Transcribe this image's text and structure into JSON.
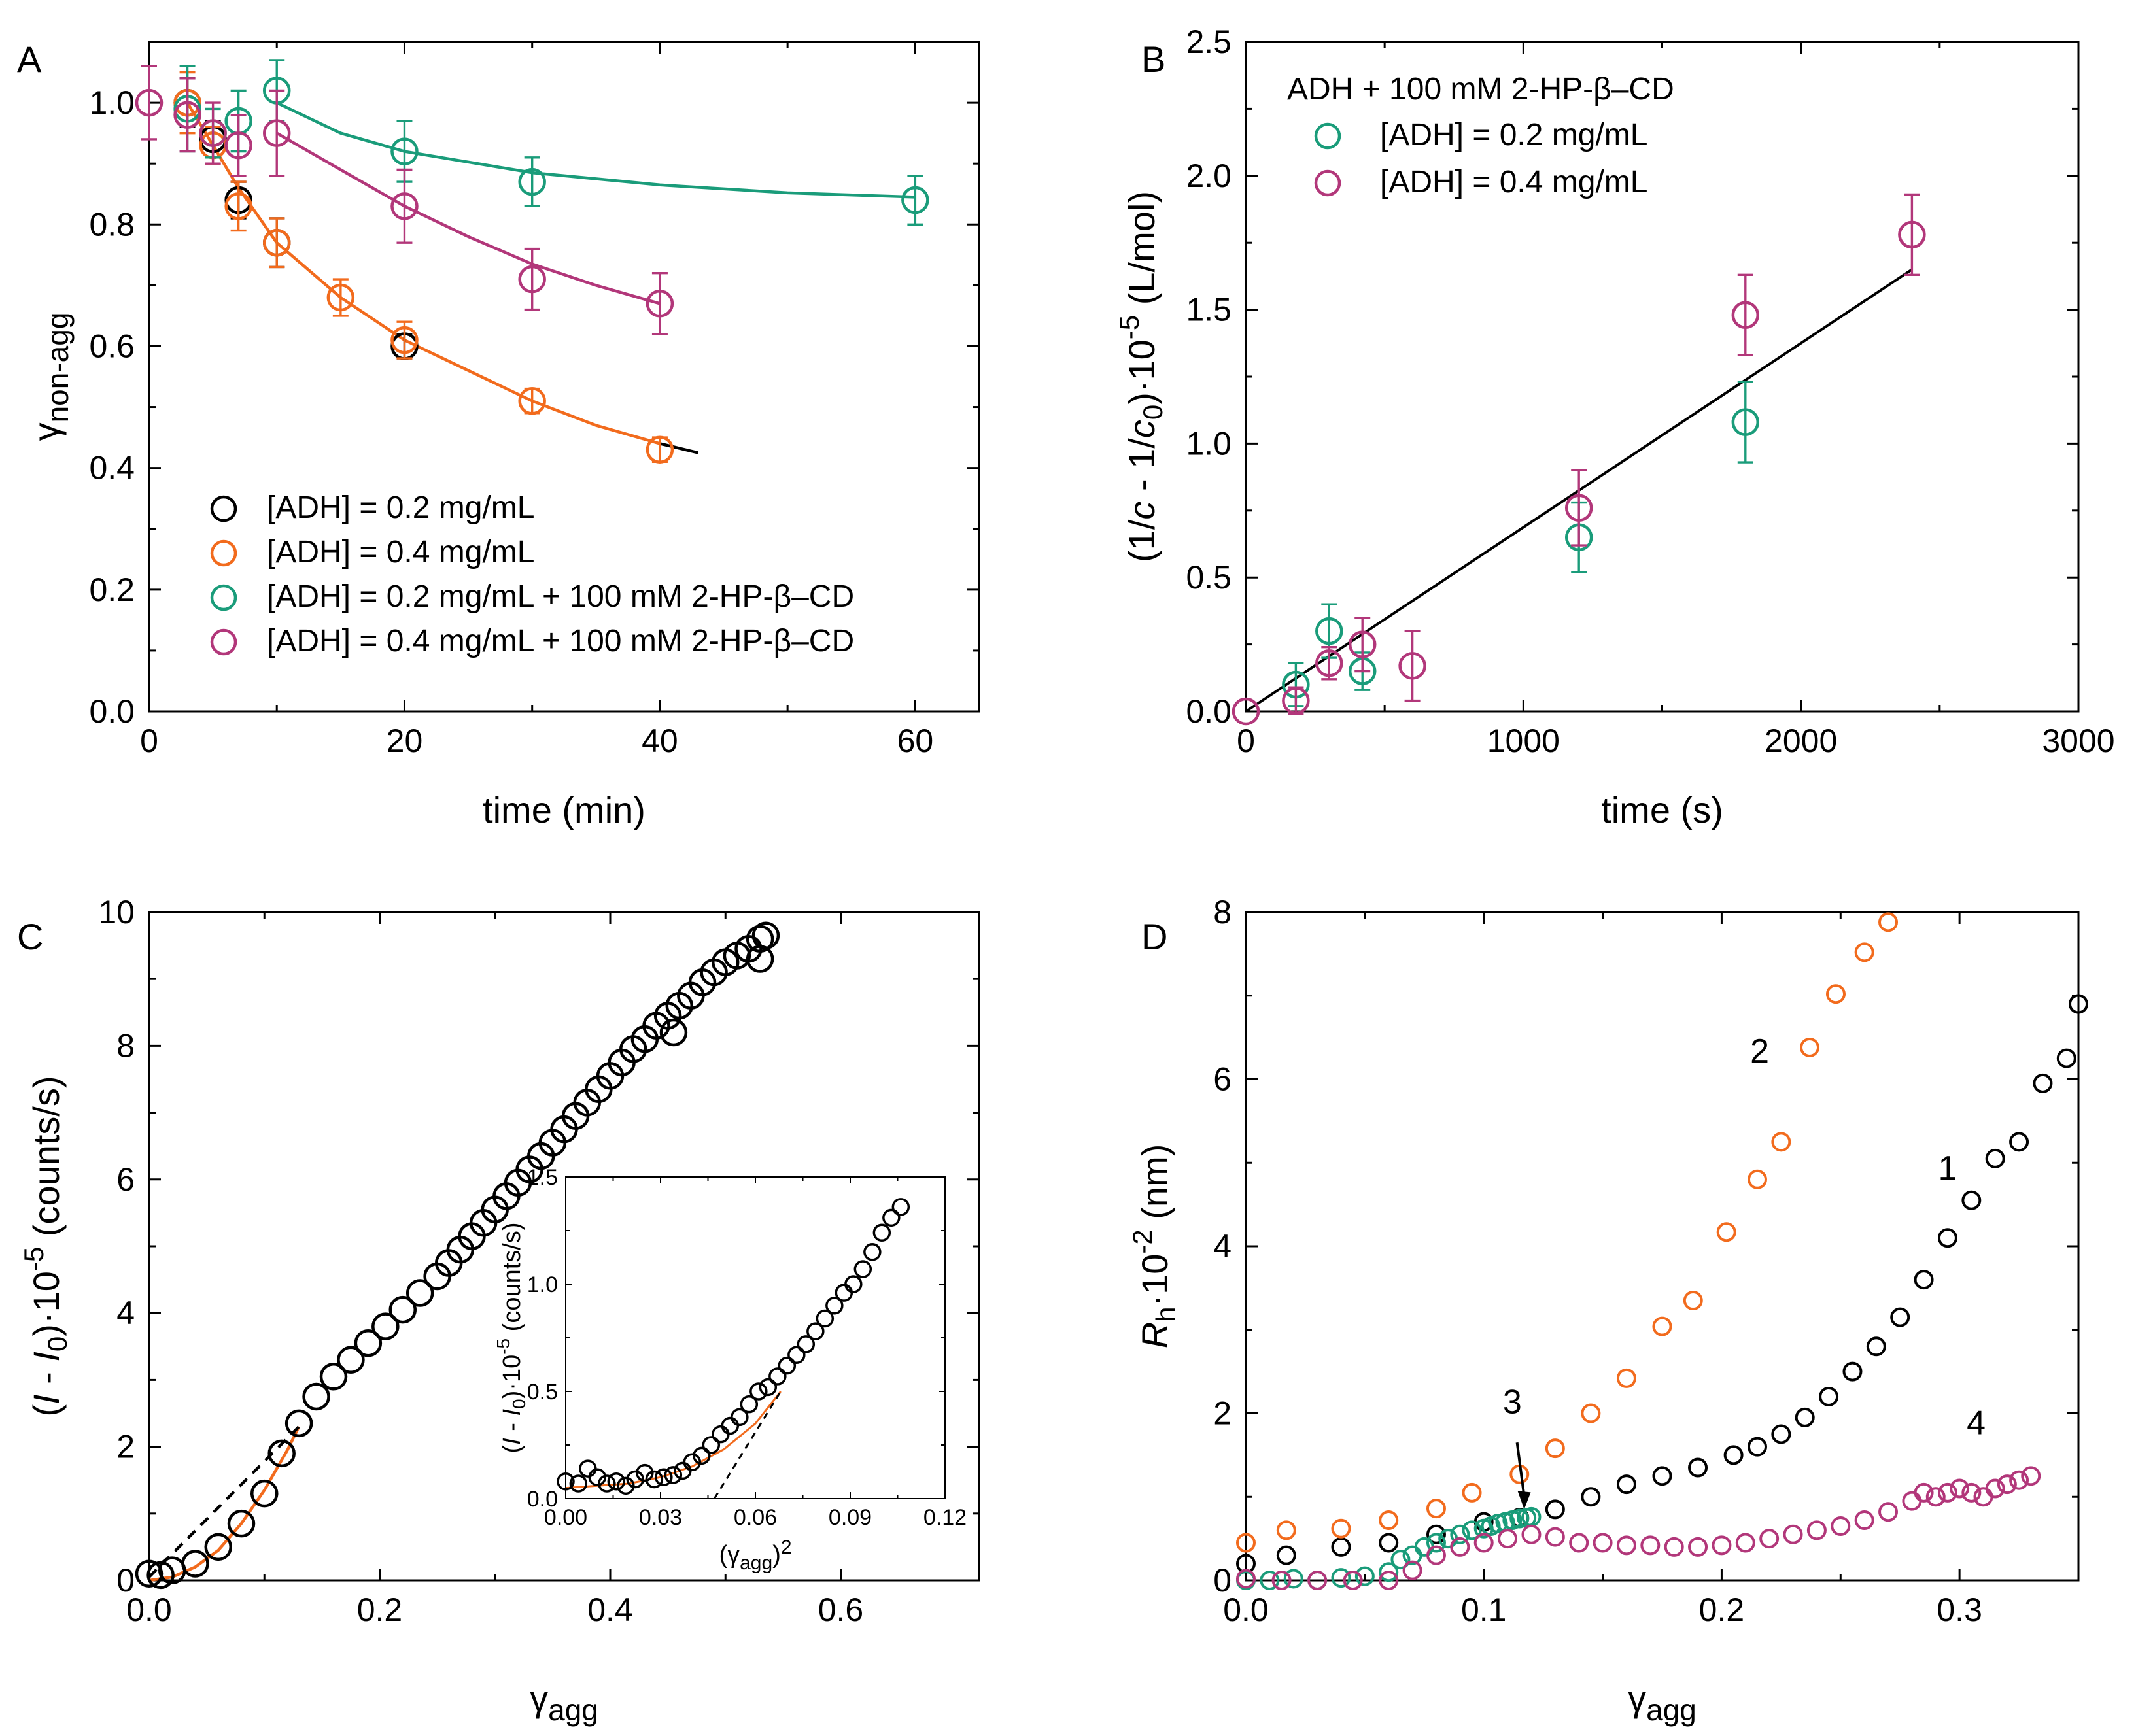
{
  "chart_data": [
    {
      "panel": "A",
      "type": "scatter",
      "xlabel": "time (min)",
      "ylabel_main": "γ",
      "ylabel_sub": "non-agg",
      "xlim": [
        0,
        65
      ],
      "ylim": [
        0,
        1.1
      ],
      "xticks": [
        0,
        20,
        40,
        60
      ],
      "xtick_labels": [
        "0",
        "20",
        "40",
        "60"
      ],
      "yticks": [
        0.0,
        0.2,
        0.4,
        0.6,
        0.8,
        1.0
      ],
      "ytick_labels": [
        "0.0",
        "0.2",
        "0.4",
        "0.6",
        "0.8",
        "1.0"
      ],
      "legend": [
        "[ADH] = 0.2 mg/mL",
        "[ADH] = 0.4 mg/mL",
        "[ADH] = 0.2 mg/mL + 100 mM 2-HP-β–CD",
        "[ADH] = 0.4 mg/mL + 100 mM 2-HP-β–CD"
      ],
      "series": [
        {
          "name": "[ADH] = 0.2 mg/mL",
          "color": "#000000",
          "x": [
            3,
            5,
            7,
            10,
            20
          ],
          "y": [
            1.0,
            0.94,
            0.84,
            0.77,
            0.6
          ],
          "err": [
            0.04,
            0.03,
            0.03,
            0.04,
            0.02
          ]
        },
        {
          "name": "[ADH] = 0.4 mg/mL",
          "color": "#f26b1d",
          "x": [
            3,
            5,
            7,
            10,
            15,
            20,
            30,
            40
          ],
          "y": [
            1.0,
            0.93,
            0.83,
            0.77,
            0.68,
            0.61,
            0.51,
            0.43
          ],
          "err": [
            0.05,
            0.03,
            0.04,
            0.04,
            0.03,
            0.03,
            0.02,
            0.02
          ]
        },
        {
          "name": "[ADH] = 0.2 mg/mL + 100 mM 2-HP-β–CD",
          "color": "#1a9c7a",
          "x": [
            3,
            5,
            7,
            10,
            20,
            30,
            60
          ],
          "y": [
            0.99,
            0.95,
            0.97,
            1.02,
            0.92,
            0.87,
            0.84
          ],
          "err": [
            0.07,
            0.04,
            0.05,
            0.05,
            0.05,
            0.04,
            0.04
          ]
        },
        {
          "name": "[ADH] = 0.4 mg/mL + 100 mM 2-HP-β–CD",
          "color": "#b2377a",
          "x": [
            0,
            3,
            5,
            7,
            10,
            20,
            30,
            40
          ],
          "y": [
            1.0,
            0.98,
            0.95,
            0.93,
            0.95,
            0.83,
            0.71,
            0.67
          ],
          "err": [
            0.06,
            0.06,
            0.05,
            0.05,
            0.07,
            0.06,
            0.05,
            0.05
          ]
        }
      ],
      "fits": [
        {
          "color": "#f26b1d",
          "x": [
            3,
            5,
            7,
            10,
            15,
            20,
            25,
            30,
            35,
            40
          ],
          "y": [
            1.0,
            0.93,
            0.86,
            0.77,
            0.68,
            0.61,
            0.56,
            0.51,
            0.47,
            0.44
          ]
        },
        {
          "color": "#000000",
          "x": [
            40,
            43
          ],
          "y": [
            0.44,
            0.425
          ]
        },
        {
          "color": "#1a9c7a",
          "x": [
            10,
            15,
            20,
            30,
            40,
            50,
            60
          ],
          "y": [
            1.0,
            0.95,
            0.92,
            0.885,
            0.865,
            0.852,
            0.845
          ]
        },
        {
          "color": "#b2377a",
          "x": [
            10,
            15,
            20,
            25,
            30,
            35,
            40
          ],
          "y": [
            0.95,
            0.89,
            0.83,
            0.78,
            0.735,
            0.7,
            0.67
          ]
        }
      ]
    },
    {
      "panel": "B",
      "type": "scatter",
      "xlabel": "time (s)",
      "ylabel_parts": [
        "(1/",
        "c",
        " - 1/",
        "c",
        "0",
        ")·10",
        "-5",
        " (L/mol)"
      ],
      "xlim": [
        0,
        3000
      ],
      "ylim": [
        0,
        2.5
      ],
      "xticks": [
        0,
        1000,
        2000,
        3000
      ],
      "xtick_labels": [
        "0",
        "1000",
        "2000",
        "3000"
      ],
      "yticks": [
        0.0,
        0.5,
        1.0,
        1.5,
        2.0,
        2.5
      ],
      "ytick_labels": [
        "0.0",
        "0.5",
        "1.0",
        "1.5",
        "2.0",
        "2.5"
      ],
      "legend_title": "ADH + 100 mM 2-HP-β–CD",
      "legend": [
        "[ADH] = 0.2 mg/mL",
        "[ADH] = 0.4 mg/mL"
      ],
      "series": [
        {
          "name": "[ADH] = 0.2 mg/mL",
          "color": "#1a9c7a",
          "x": [
            180,
            300,
            420,
            1200,
            1800
          ],
          "y": [
            0.1,
            0.3,
            0.15,
            0.65,
            1.08
          ],
          "err": [
            0.08,
            0.1,
            0.07,
            0.13,
            0.15
          ]
        },
        {
          "name": "[ADH] = 0.4 mg/mL",
          "color": "#b2377a",
          "x": [
            0,
            180,
            300,
            420,
            600,
            1200,
            1800,
            2400
          ],
          "y": [
            0.0,
            0.04,
            0.18,
            0.25,
            0.17,
            0.76,
            1.48,
            1.78
          ],
          "err": [
            0.0,
            0.05,
            0.06,
            0.1,
            0.13,
            0.14,
            0.15,
            0.15
          ]
        }
      ],
      "fits": [
        {
          "color": "#000000",
          "x": [
            0,
            2400
          ],
          "y": [
            0.0,
            1.65
          ]
        }
      ]
    },
    {
      "panel": "C",
      "type": "scatter",
      "xlabel_main": "γ",
      "xlabel_sub": "agg",
      "ylabel_parts": [
        "(",
        "I",
        " - ",
        "I",
        "0",
        ")·10",
        "-5",
        " (counts/s)"
      ],
      "xlim": [
        0,
        0.72
      ],
      "ylim": [
        0,
        10
      ],
      "xticks": [
        0.0,
        0.2,
        0.4,
        0.6
      ],
      "xtick_labels": [
        "0.0",
        "0.2",
        "0.4",
        "0.6"
      ],
      "yticks": [
        0,
        2,
        4,
        6,
        8,
        10
      ],
      "ytick_labels": [
        "0",
        "2",
        "4",
        "6",
        "8",
        "10"
      ],
      "series": [
        {
          "name": "main",
          "color": "#000000",
          "x": [
            0.0,
            0.01,
            0.02,
            0.04,
            0.06,
            0.08,
            0.1,
            0.115,
            0.13,
            0.145,
            0.16,
            0.175,
            0.19,
            0.205,
            0.22,
            0.235,
            0.25,
            0.26,
            0.27,
            0.28,
            0.29,
            0.3,
            0.31,
            0.32,
            0.33,
            0.34,
            0.35,
            0.36,
            0.37,
            0.38,
            0.39,
            0.4,
            0.41,
            0.42,
            0.43,
            0.44,
            0.45,
            0.46,
            0.47,
            0.48,
            0.49,
            0.5,
            0.51,
            0.52,
            0.53,
            0.535
          ],
          "y": [
            0.1,
            0.08,
            0.15,
            0.25,
            0.5,
            0.85,
            1.3,
            1.9,
            2.35,
            2.75,
            3.05,
            3.3,
            3.55,
            3.8,
            4.05,
            4.3,
            4.55,
            4.75,
            4.95,
            5.15,
            5.35,
            5.55,
            5.75,
            5.95,
            6.15,
            6.35,
            6.55,
            6.75,
            6.95,
            7.15,
            7.35,
            7.55,
            7.75,
            7.95,
            8.1,
            8.3,
            8.45,
            8.6,
            8.75,
            8.95,
            9.1,
            9.25,
            9.35,
            9.45,
            9.6,
            9.65
          ]
        },
        {
          "name": "main-outliers",
          "color": "#000000",
          "x": [
            0.455,
            0.53
          ],
          "y": [
            8.2,
            9.3
          ]
        }
      ],
      "fits": [
        {
          "color": "#f26b1d",
          "style": "solid",
          "x": [
            0.0,
            0.02,
            0.04,
            0.06,
            0.08,
            0.1,
            0.12,
            0.13
          ],
          "y": [
            0.0,
            0.05,
            0.2,
            0.45,
            0.85,
            1.35,
            1.95,
            2.3
          ]
        },
        {
          "color": "#000000",
          "style": "dashed",
          "x": [
            0.0,
            0.13
          ],
          "y": [
            0.05,
            2.3
          ]
        }
      ],
      "inset": {
        "xlabel_main": "(γ",
        "xlabel_sub": "agg",
        "xlabel_end": ")",
        "xlabel_sup": "2",
        "ylabel_parts": [
          "(",
          "I",
          " - ",
          "I",
          "0",
          ")·10",
          "-5",
          " (counts/s)"
        ],
        "xlim": [
          0,
          0.12
        ],
        "ylim": [
          0,
          1.5
        ],
        "xticks": [
          0.0,
          0.03,
          0.06,
          0.09,
          0.12
        ],
        "xtick_labels": [
          "0.00",
          "0.03",
          "0.06",
          "0.09",
          "0.12"
        ],
        "yticks": [
          0.0,
          0.5,
          1.0,
          1.5
        ],
        "ytick_labels": [
          "0.0",
          "0.5",
          "1.0",
          "1.5"
        ],
        "series": [
          {
            "color": "#000000",
            "x": [
              0.0,
              0.004,
              0.007,
              0.01,
              0.013,
              0.016,
              0.019,
              0.022,
              0.025,
              0.028,
              0.031,
              0.034,
              0.037,
              0.04,
              0.043,
              0.046,
              0.049,
              0.052,
              0.055,
              0.058,
              0.061,
              0.064,
              0.067,
              0.07,
              0.073,
              0.076,
              0.079,
              0.082,
              0.085,
              0.088,
              0.091,
              0.094,
              0.097,
              0.1,
              0.103,
              0.106
            ],
            "y": [
              0.08,
              0.07,
              0.14,
              0.1,
              0.07,
              0.08,
              0.06,
              0.09,
              0.12,
              0.09,
              0.1,
              0.11,
              0.13,
              0.17,
              0.2,
              0.25,
              0.3,
              0.34,
              0.38,
              0.44,
              0.5,
              0.52,
              0.57,
              0.62,
              0.67,
              0.72,
              0.78,
              0.84,
              0.9,
              0.96,
              1.0,
              1.07,
              1.15,
              1.24,
              1.31,
              1.36
            ]
          }
        ],
        "fits": [
          {
            "color": "#f26b1d",
            "style": "solid",
            "x": [
              0.0,
              0.01,
              0.02,
              0.03,
              0.04,
              0.05,
              0.06,
              0.068
            ],
            "y": [
              0.05,
              0.06,
              0.07,
              0.1,
              0.15,
              0.23,
              0.35,
              0.5
            ]
          },
          {
            "color": "#000000",
            "style": "dashed",
            "x": [
              0.047,
              0.068
            ],
            "y": [
              0.0,
              0.5
            ]
          }
        ]
      }
    },
    {
      "panel": "D",
      "type": "scatter",
      "xlabel_main": "γ",
      "xlabel_sub": "agg",
      "ylabel_parts": [
        "R",
        "h",
        "·10",
        "-2",
        " (nm)"
      ],
      "xlim": [
        0,
        0.35
      ],
      "ylim": [
        0,
        8
      ],
      "xticks": [
        0.0,
        0.1,
        0.2,
        0.3
      ],
      "xtick_labels": [
        "0.0",
        "0.1",
        "0.2",
        "0.3"
      ],
      "yticks": [
        0,
        2,
        4,
        6,
        8
      ],
      "ytick_labels": [
        "0",
        "2",
        "4",
        "6",
        "8"
      ],
      "series": [
        {
          "name": "1",
          "color": "#000000",
          "x": [
            0.0,
            0.017,
            0.04,
            0.06,
            0.08,
            0.1,
            0.115,
            0.13,
            0.145,
            0.16,
            0.175,
            0.19,
            0.205,
            0.215,
            0.225,
            0.235,
            0.245,
            0.255,
            0.265,
            0.275,
            0.285,
            0.295,
            0.305,
            0.315,
            0.325,
            0.335,
            0.345
          ],
          "y": [
            0.2,
            0.3,
            0.4,
            0.45,
            0.55,
            0.7,
            0.75,
            0.85,
            1.0,
            1.15,
            1.25,
            1.35,
            1.5,
            1.6,
            1.75,
            1.95,
            2.2,
            2.5,
            2.8,
            3.15,
            3.6,
            4.1,
            4.55,
            5.05,
            5.25,
            5.95,
            6.25
          ]
        },
        {
          "name": "1-top",
          "color": "#000000",
          "x": [
            0.35
          ],
          "y": [
            6.9
          ]
        },
        {
          "name": "2",
          "color": "#f26b1d",
          "x": [
            0.0,
            0.017,
            0.04,
            0.06,
            0.08,
            0.095,
            0.115,
            0.13,
            0.145,
            0.16,
            0.175,
            0.188,
            0.202,
            0.215,
            0.225,
            0.237,
            0.248,
            0.26,
            0.27
          ],
          "y": [
            0.45,
            0.6,
            0.62,
            0.72,
            0.86,
            1.05,
            1.27,
            1.58,
            2.0,
            2.42,
            3.04,
            3.35,
            4.17,
            4.8,
            5.25,
            6.38,
            7.02,
            7.52,
            7.88
          ]
        },
        {
          "name": "3",
          "color": "#1a9c7a",
          "x": [
            0.0,
            0.01,
            0.02,
            0.03,
            0.04,
            0.05,
            0.06,
            0.065,
            0.07,
            0.075,
            0.08,
            0.085,
            0.09,
            0.095,
            0.1,
            0.103,
            0.106,
            0.109,
            0.112,
            0.115,
            0.118,
            0.12
          ],
          "y": [
            0.0,
            0.0,
            0.02,
            0.0,
            0.03,
            0.05,
            0.1,
            0.25,
            0.3,
            0.4,
            0.45,
            0.5,
            0.55,
            0.6,
            0.62,
            0.65,
            0.68,
            0.7,
            0.72,
            0.74,
            0.75,
            0.76
          ]
        },
        {
          "name": "4",
          "color": "#b2377a",
          "x": [
            0.0,
            0.015,
            0.03,
            0.045,
            0.06,
            0.07,
            0.08,
            0.09,
            0.1,
            0.11,
            0.12,
            0.13,
            0.14,
            0.15,
            0.16,
            0.17,
            0.18,
            0.19,
            0.2,
            0.21,
            0.22,
            0.23,
            0.24,
            0.25,
            0.26,
            0.27,
            0.28,
            0.285,
            0.29,
            0.295,
            0.3,
            0.305,
            0.31,
            0.315,
            0.32,
            0.325,
            0.33
          ],
          "y": [
            0.02,
            0.0,
            0.0,
            0.0,
            0.0,
            0.12,
            0.3,
            0.4,
            0.45,
            0.5,
            0.55,
            0.52,
            0.45,
            0.45,
            0.42,
            0.42,
            0.4,
            0.4,
            0.42,
            0.45,
            0.5,
            0.55,
            0.6,
            0.65,
            0.72,
            0.82,
            0.95,
            1.05,
            1.0,
            1.05,
            1.1,
            1.05,
            1.0,
            1.1,
            1.15,
            1.2,
            1.25
          ]
        }
      ],
      "curve_labels": [
        {
          "text": "1",
          "x": 0.295,
          "y": 4.8
        },
        {
          "text": "2",
          "x": 0.216,
          "y": 6.2
        },
        {
          "text": "3",
          "x": 0.112,
          "y": 2.0
        },
        {
          "text": "4",
          "x": 0.307,
          "y": 1.75
        }
      ],
      "arrow": {
        "x1": 0.114,
        "y1": 1.65,
        "x2": 0.117,
        "y2": 0.85
      }
    }
  ]
}
